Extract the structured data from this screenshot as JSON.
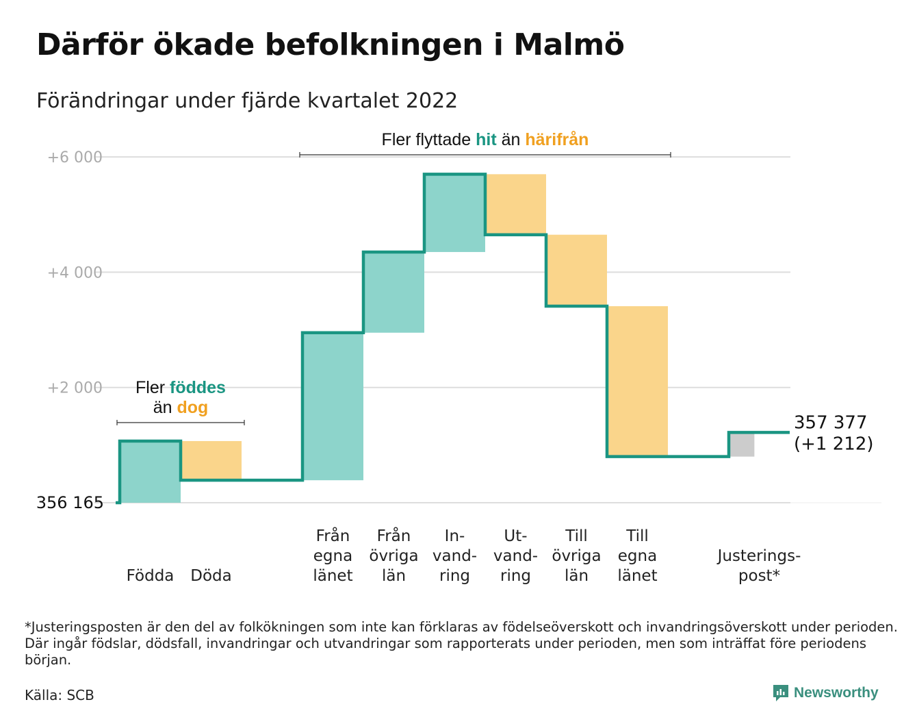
{
  "title": "Därför ökade befolkningen i Malmö",
  "subtitle": "Förändringar under fjärde kvartalet 2022",
  "footnote": "*Justeringsposten är den del av folkökningen som inte kan förklaras av födelseöverskott och invandringsöverskott under perioden. Där ingår födslar, dödsfall, invandringar och utvandringar som rapporterats under perioden, men som inträffat före periodens början.",
  "source": "Källa: SCB",
  "brand": "Newsworthy",
  "colors": {
    "increase": "#8dd4cb",
    "decrease": "#fad58b",
    "adjustment": "#cccccc",
    "line": "#1a9582",
    "teal_text": "#1a9582",
    "orange_text": "#f0a020",
    "grid": "#dddddd",
    "tick": "#aaaaaa"
  },
  "chart_data": {
    "type": "waterfall",
    "start_value": 356165,
    "start_label": "356 165",
    "end_label": "357 377",
    "end_change_label": "(+1 212)",
    "y_ticks": [
      {
        "value": 2000,
        "label": "+2 000"
      },
      {
        "value": 4000,
        "label": "+4 000"
      },
      {
        "value": 6000,
        "label": "+6 000"
      }
    ],
    "ylim": [
      0,
      6000
    ],
    "grid": true,
    "steps": [
      {
        "label_lines": [
          "Födda"
        ],
        "value": 1070,
        "kind": "increase"
      },
      {
        "label_lines": [
          "Döda"
        ],
        "value": -680,
        "kind": "decrease"
      },
      {
        "label_lines": [],
        "value": 0,
        "kind": "gap"
      },
      {
        "label_lines": [
          "Från",
          "egna",
          "länet"
        ],
        "value": 2560,
        "kind": "increase"
      },
      {
        "label_lines": [
          "Från",
          "övriga",
          "län"
        ],
        "value": 1400,
        "kind": "increase"
      },
      {
        "label_lines": [
          "In-",
          "vand-",
          "ring"
        ],
        "value": 1350,
        "kind": "increase"
      },
      {
        "label_lines": [
          "Ut-",
          "vand-",
          "ring"
        ],
        "value": -1050,
        "kind": "decrease"
      },
      {
        "label_lines": [
          "Till",
          "övriga",
          "län"
        ],
        "value": -1240,
        "kind": "decrease"
      },
      {
        "label_lines": [
          "Till",
          "egna",
          "länet"
        ],
        "value": -2610,
        "kind": "decrease"
      },
      {
        "label_lines": [],
        "value": 0,
        "kind": "gap"
      },
      {
        "label_lines": [
          "Justerings-",
          "post*"
        ],
        "value": 420,
        "kind": "adjustment"
      }
    ],
    "annotations": [
      {
        "first_step": 0,
        "last_step": 1,
        "lines": [
          [
            {
              "text": "Fler ",
              "style": "plain"
            },
            {
              "text": "föddes",
              "style": "teal"
            }
          ],
          [
            {
              "text": "än ",
              "style": "plain"
            },
            {
              "text": "dog",
              "style": "orange"
            }
          ]
        ]
      },
      {
        "first_step": 3,
        "last_step": 8,
        "lines": [
          [
            {
              "text": "Fler flyttade ",
              "style": "plain"
            },
            {
              "text": "hit",
              "style": "teal"
            },
            {
              "text": " än ",
              "style": "plain"
            },
            {
              "text": "härifrån",
              "style": "orange"
            }
          ]
        ]
      }
    ]
  }
}
